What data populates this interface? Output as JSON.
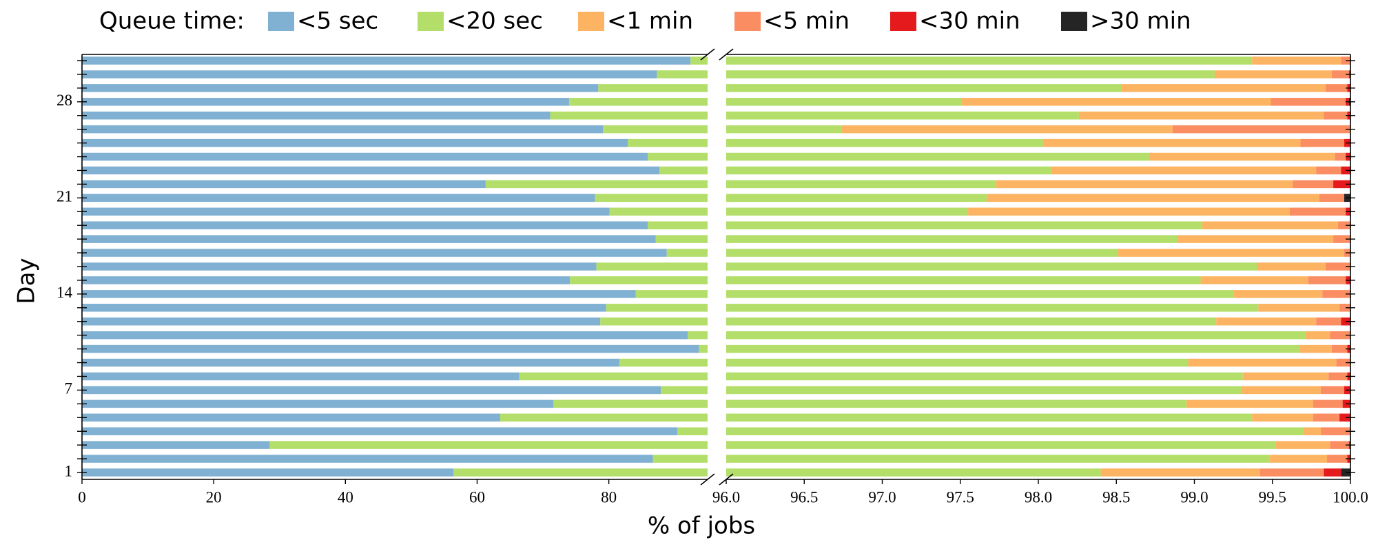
{
  "chart_data": {
    "type": "stacked-barh",
    "legend_title": "Queue time:",
    "xlabel": "% of jobs",
    "ylabel": "Day",
    "axis_break": true,
    "xlim": [
      0,
      95
    ],
    "xticks": [
      0,
      20,
      40,
      60,
      80
    ],
    "xlim2": [
      96,
      100
    ],
    "xticks2": [
      {
        "value": 96,
        "label": "96.0"
      },
      {
        "value": 96.5,
        "label": "96.5"
      },
      {
        "value": 97,
        "label": "97.0"
      },
      {
        "value": 97.5,
        "label": "97.5"
      },
      {
        "value": 98,
        "label": "98.0"
      },
      {
        "value": 98.5,
        "label": "98.5"
      },
      {
        "value": 99,
        "label": "99.0"
      },
      {
        "value": 99.5,
        "label": "99.5"
      },
      {
        "value": 100,
        "label": "100.0"
      }
    ],
    "categories": [
      1,
      null,
      null,
      null,
      null,
      null,
      7,
      null,
      null,
      null,
      null,
      null,
      null,
      14,
      null,
      null,
      null,
      null,
      null,
      null,
      21,
      null,
      null,
      null,
      null,
      null,
      null,
      28,
      null,
      null,
      null
    ],
    "legend_position": "top",
    "series": [
      {
        "name": "<5 sec",
        "color": "#80b1d3",
        "values": [
          56.4,
          86.7,
          28.5,
          90.4,
          63.5,
          71.6,
          87.9,
          66.4,
          81.6,
          93.7,
          92.0,
          78.7,
          79.6,
          84.1,
          74.1,
          78.1,
          88.8,
          87.1,
          85.9,
          80.1,
          77.9,
          61.3,
          87.7,
          85.9,
          82.9,
          79.1,
          71.1,
          74.0,
          78.4,
          87.3,
          92.4
        ]
      },
      {
        "name": "<20 sec",
        "color": "#b3de69",
        "values": [
          42.0,
          12.78,
          71.02,
          9.3,
          35.87,
          27.35,
          11.4,
          32.91,
          17.36,
          5.97,
          7.71,
          20.44,
          19.81,
          15.15,
          24.94,
          21.3,
          9.71,
          11.79,
          13.15,
          17.45,
          19.77,
          36.43,
          10.38,
          12.81,
          15.13,
          17.64,
          27.16,
          23.51,
          20.13,
          11.83,
          6.97
        ]
      },
      {
        "name": "<1 min",
        "color": "#fdb462",
        "values": [
          1.02,
          0.37,
          0.35,
          0.11,
          0.39,
          0.81,
          0.51,
          0.55,
          0.95,
          0.21,
          0.16,
          0.64,
          0.52,
          0.57,
          0.69,
          0.44,
          1.45,
          1.0,
          0.87,
          2.06,
          2.13,
          1.9,
          1.7,
          1.19,
          1.65,
          2.12,
          1.57,
          1.98,
          1.31,
          0.75,
          0.57
        ]
      },
      {
        "name": "<5 min",
        "color": "#fb8d62",
        "values": [
          0.41,
          0.13,
          0.12,
          0.19,
          0.17,
          0.19,
          0.15,
          0.12,
          0.09,
          0.1,
          0.13,
          0.16,
          0.07,
          0.18,
          0.24,
          0.16,
          0.04,
          0.11,
          0.08,
          0.36,
          0.16,
          0.26,
          0.16,
          0.07,
          0.28,
          1.14,
          0.15,
          0.48,
          0.14,
          0.11,
          0.06
        ]
      },
      {
        "name": "<30 min",
        "color": "#e41a1c",
        "values": [
          0.11,
          0.02,
          0.01,
          0,
          0.07,
          0.05,
          0.04,
          0.02,
          0,
          0.02,
          0,
          0.06,
          0,
          0,
          0.03,
          0,
          0,
          0,
          0,
          0.03,
          0,
          0.11,
          0.06,
          0.03,
          0.04,
          0,
          0.02,
          0.02,
          0.02,
          0.01,
          0
        ]
      },
      {
        "name": ">30 min",
        "color": "#252525",
        "values": [
          0.06,
          0,
          0,
          0,
          0,
          0,
          0,
          0,
          0,
          0,
          0,
          0,
          0,
          0,
          0,
          0,
          0,
          0,
          0,
          0,
          0.04,
          0,
          0,
          0,
          0,
          0,
          0,
          0.01,
          0,
          0,
          0
        ]
      }
    ]
  }
}
